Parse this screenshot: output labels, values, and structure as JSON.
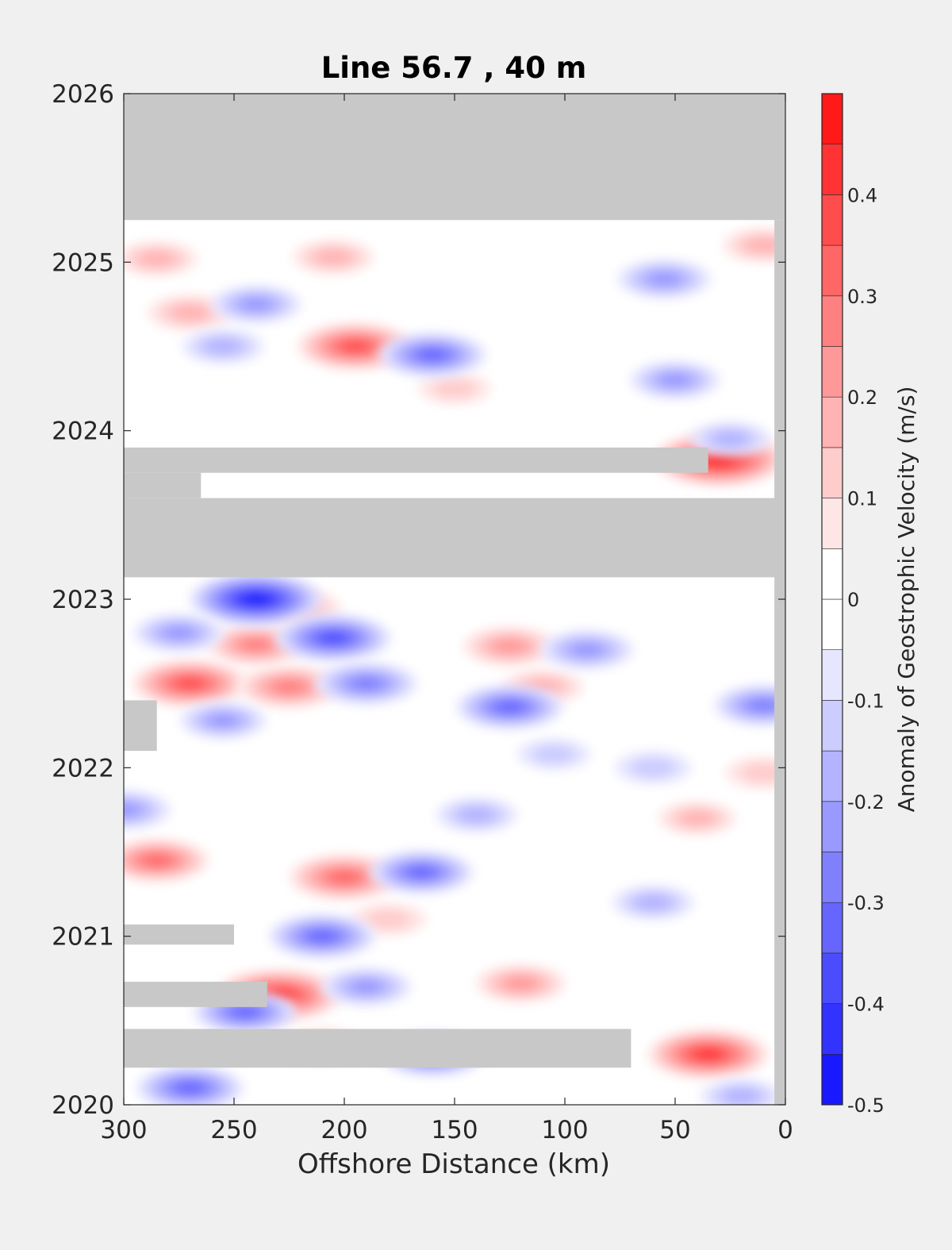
{
  "chart_data": {
    "type": "heatmap",
    "title": "Line 56.7 , 40 m",
    "xlabel": "Offshore Distance (km)",
    "ylabel": "",
    "xlim": [
      300,
      0
    ],
    "ylim": [
      2020,
      2026
    ],
    "x_reversed": true,
    "x_ticks": [
      "300",
      "250",
      "200",
      "150",
      "100",
      "50",
      "0"
    ],
    "y_ticks": [
      "2020",
      "2021",
      "2022",
      "2023",
      "2024",
      "2025",
      "2026"
    ],
    "colorbar": {
      "label": "Anomaly of Geostrophic Velocity (m/s)",
      "range": [
        -0.5,
        0.5
      ],
      "levels": 20,
      "ticks": [
        "-0.5",
        "-0.4",
        "-0.3",
        "-0.2",
        "-0.1",
        "0",
        "0.1",
        "0.2",
        "0.3",
        "0.4"
      ],
      "colormap": "blue-white-red"
    },
    "missing_data_color": "#c8c8c8",
    "missing_regions": [
      {
        "x": [
          300,
          0
        ],
        "y": [
          2025.25,
          2026.0
        ]
      },
      {
        "x": [
          300,
          0
        ],
        "y": [
          2023.13,
          2023.6
        ]
      },
      {
        "x": [
          300,
          35
        ],
        "y": [
          2023.75,
          2023.9
        ]
      },
      {
        "x": [
          300,
          265
        ],
        "y": [
          2023.6,
          2023.75
        ]
      },
      {
        "x": [
          300,
          285
        ],
        "y": [
          2022.1,
          2022.4
        ]
      },
      {
        "x": [
          300,
          250
        ],
        "y": [
          2020.95,
          2021.07
        ]
      },
      {
        "x": [
          300,
          235
        ],
        "y": [
          2020.58,
          2020.73
        ]
      },
      {
        "x": [
          300,
          70
        ],
        "y": [
          2020.22,
          2020.45
        ]
      },
      {
        "x": [
          5,
          0
        ],
        "y": [
          2020.0,
          2025.25
        ]
      }
    ],
    "anomalies": [
      {
        "x": 30,
        "y": 2023.83,
        "value": 0.45
      },
      {
        "x": 35,
        "y": 2020.3,
        "value": 0.38
      },
      {
        "x": 230,
        "y": 2020.65,
        "value": 0.42
      },
      {
        "x": 195,
        "y": 2024.5,
        "value": 0.35
      },
      {
        "x": 200,
        "y": 2021.35,
        "value": 0.32
      },
      {
        "x": 270,
        "y": 2022.5,
        "value": 0.35
      },
      {
        "x": 285,
        "y": 2021.45,
        "value": 0.28
      },
      {
        "x": 225,
        "y": 2022.48,
        "value": 0.27
      },
      {
        "x": 240,
        "y": 2022.73,
        "value": 0.25
      },
      {
        "x": 125,
        "y": 2022.72,
        "value": 0.22
      },
      {
        "x": 120,
        "y": 2020.72,
        "value": 0.2
      },
      {
        "x": 210,
        "y": 2020.35,
        "value": 0.15
      },
      {
        "x": 180,
        "y": 2021.1,
        "value": 0.12
      },
      {
        "x": 220,
        "y": 2022.95,
        "value": 0.15
      },
      {
        "x": 285,
        "y": 2025.02,
        "value": 0.15
      },
      {
        "x": 270,
        "y": 2024.7,
        "value": 0.17
      },
      {
        "x": 205,
        "y": 2025.03,
        "value": 0.15
      },
      {
        "x": 40,
        "y": 2021.7,
        "value": 0.13
      },
      {
        "x": 10,
        "y": 2025.1,
        "value": 0.15
      },
      {
        "x": 10,
        "y": 2021.97,
        "value": 0.12
      },
      {
        "x": 110,
        "y": 2022.48,
        "value": 0.15
      },
      {
        "x": 150,
        "y": 2024.25,
        "value": 0.1
      },
      {
        "x": 240,
        "y": 2023.0,
        "value": -0.45
      },
      {
        "x": 205,
        "y": 2022.77,
        "value": -0.35
      },
      {
        "x": 160,
        "y": 2024.45,
        "value": -0.3
      },
      {
        "x": 165,
        "y": 2021.38,
        "value": -0.28
      },
      {
        "x": 210,
        "y": 2021.0,
        "value": -0.3
      },
      {
        "x": 125,
        "y": 2022.36,
        "value": -0.3
      },
      {
        "x": 190,
        "y": 2022.5,
        "value": -0.27
      },
      {
        "x": 270,
        "y": 2020.1,
        "value": -0.3
      },
      {
        "x": 160,
        "y": 2020.3,
        "value": -0.3
      },
      {
        "x": 245,
        "y": 2020.55,
        "value": -0.28
      },
      {
        "x": 10,
        "y": 2022.37,
        "value": -0.25
      },
      {
        "x": 240,
        "y": 2024.75,
        "value": -0.2
      },
      {
        "x": 300,
        "y": 2021.75,
        "value": -0.22
      },
      {
        "x": 55,
        "y": 2024.9,
        "value": -0.22
      },
      {
        "x": 50,
        "y": 2024.3,
        "value": -0.2
      },
      {
        "x": 190,
        "y": 2020.7,
        "value": -0.2
      },
      {
        "x": 90,
        "y": 2022.7,
        "value": -0.22
      },
      {
        "x": 275,
        "y": 2022.8,
        "value": -0.2
      },
      {
        "x": 255,
        "y": 2022.28,
        "value": -0.18
      },
      {
        "x": 25,
        "y": 2023.95,
        "value": -0.15
      },
      {
        "x": 255,
        "y": 2024.5,
        "value": -0.15
      },
      {
        "x": 140,
        "y": 2021.72,
        "value": -0.15
      },
      {
        "x": 20,
        "y": 2020.05,
        "value": -0.15
      },
      {
        "x": 60,
        "y": 2021.2,
        "value": -0.15
      },
      {
        "x": 60,
        "y": 2022.0,
        "value": -0.12
      },
      {
        "x": 105,
        "y": 2022.08,
        "value": -0.1
      }
    ]
  }
}
